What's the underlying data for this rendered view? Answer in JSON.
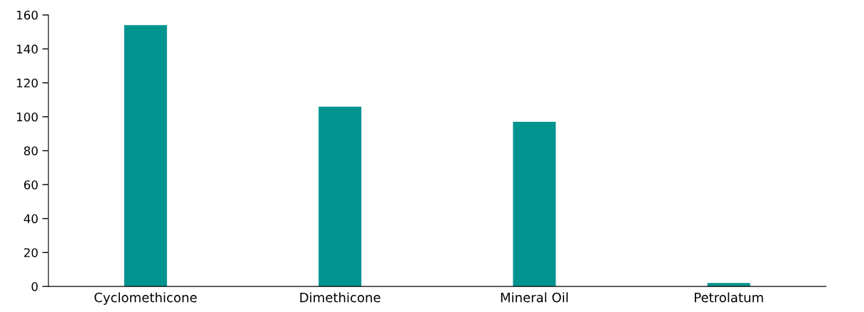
{
  "chart_data": {
    "type": "bar",
    "categories": [
      "Cyclomethicone",
      "Dimethicone",
      "Mineral Oil",
      "Petrolatum"
    ],
    "values": [
      154,
      106,
      97,
      2
    ],
    "color": "#009490",
    "ylim": [
      0,
      160
    ],
    "yticks": [
      0,
      20,
      40,
      60,
      80,
      100,
      120,
      140,
      160
    ],
    "grid": false,
    "legend": false
  }
}
